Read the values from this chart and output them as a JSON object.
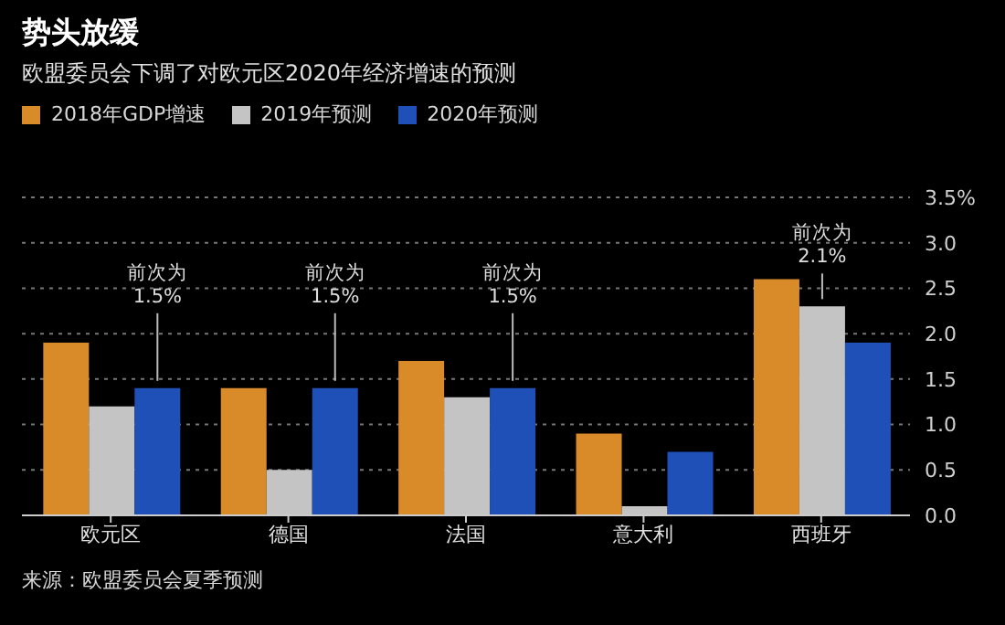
{
  "chart_data": {
    "type": "bar",
    "title": "势头放缓",
    "subtitle": "欧盟委员会下调了对欧元区2020年经济增速的预测",
    "categories": [
      "欧元区",
      "德国",
      "法国",
      "意大利",
      "西班牙"
    ],
    "series": [
      {
        "name": "2018年GDP增速",
        "color": "#d98a29",
        "values": [
          1.9,
          1.4,
          1.7,
          0.9,
          2.6
        ]
      },
      {
        "name": "2019年预测",
        "color": "#c4c4c4",
        "values": [
          1.2,
          0.5,
          1.3,
          0.1,
          2.3
        ]
      },
      {
        "name": "2020年预测",
        "color": "#1f50b8",
        "values": [
          1.4,
          1.4,
          1.4,
          0.7,
          1.9
        ]
      }
    ],
    "ylim": [
      0,
      3.5
    ],
    "yticks": [
      {
        "value": 0,
        "label": "0.0"
      },
      {
        "value": 0.5,
        "label": "0.5"
      },
      {
        "value": 1,
        "label": "1.0"
      },
      {
        "value": 1.5,
        "label": "1.5"
      },
      {
        "value": 2,
        "label": "2.0"
      },
      {
        "value": 2.5,
        "label": "2.5"
      },
      {
        "value": 3,
        "label": "3.0"
      },
      {
        "value": 3.5,
        "label": "3.5%"
      }
    ],
    "grid": "y",
    "legend": "top left",
    "annotations": [
      "前次为 1.5%",
      "前次为 1.5%",
      "前次为 1.5%",
      "前次为 2.1%",
      "来源：欧盟委员会夏季预测"
    ]
  }
}
